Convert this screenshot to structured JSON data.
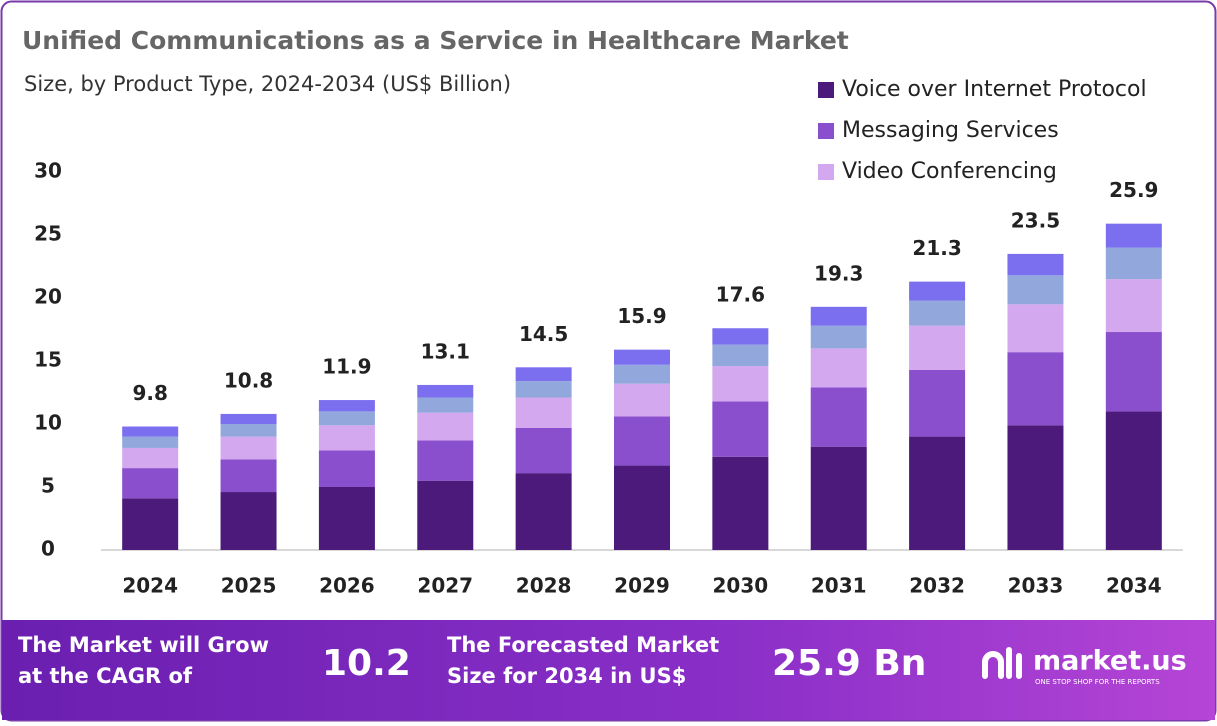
{
  "chart_data": {
    "type": "stacked_bar",
    "title": "Unified Communications as a Service in Healthcare Market",
    "subtitle": "Size, by Product Type, 2024-2034 (US$ Billion)",
    "categories": [
      "2024",
      "2025",
      "2026",
      "2027",
      "2028",
      "2029",
      "2030",
      "2031",
      "2032",
      "2033",
      "2034"
    ],
    "series": [
      {
        "name": "Voice over Internet Protocol",
        "color": "#4b1a7a",
        "values": [
          4.1,
          4.6,
          5.0,
          5.5,
          6.1,
          6.7,
          7.4,
          8.2,
          9.0,
          9.9,
          11.0
        ]
      },
      {
        "name": "Messaging Services",
        "color": "#8a4fcc",
        "values": [
          2.4,
          2.6,
          2.9,
          3.2,
          3.6,
          3.9,
          4.4,
          4.7,
          5.3,
          5.8,
          6.3
        ]
      },
      {
        "name": "Video Conferencing",
        "color": "#d4a8ee",
        "values": [
          1.6,
          1.8,
          2.0,
          2.2,
          2.4,
          2.6,
          2.8,
          3.1,
          3.5,
          3.8,
          4.2
        ]
      },
      {
        "color": "#92a8dc",
        "values": [
          0.9,
          1.0,
          1.1,
          1.2,
          1.3,
          1.5,
          1.7,
          1.8,
          2.0,
          2.3,
          2.5
        ]
      },
      {
        "color": "#7b6ff0",
        "values": [
          0.8,
          0.8,
          0.9,
          1.0,
          1.1,
          1.2,
          1.3,
          1.5,
          1.5,
          1.7,
          1.9
        ]
      }
    ],
    "totals": [
      9.8,
      10.8,
      11.9,
      13.1,
      14.5,
      15.9,
      17.6,
      19.3,
      21.3,
      23.5,
      25.9
    ],
    "ylim": [
      0,
      30
    ],
    "yticks": [
      0,
      5,
      10,
      15,
      20,
      25,
      30
    ],
    "legend": "top-right"
  },
  "footer": {
    "cagr_text": "The Market will Grow at the CAGR of",
    "cagr_value": "10.2",
    "forecast_text": "The Forecasted Market Size for 2034 in US$",
    "forecast_value": "25.9 Bn",
    "brand": "market.us",
    "tagline": "ONE STOP SHOP FOR THE REPORTS"
  }
}
